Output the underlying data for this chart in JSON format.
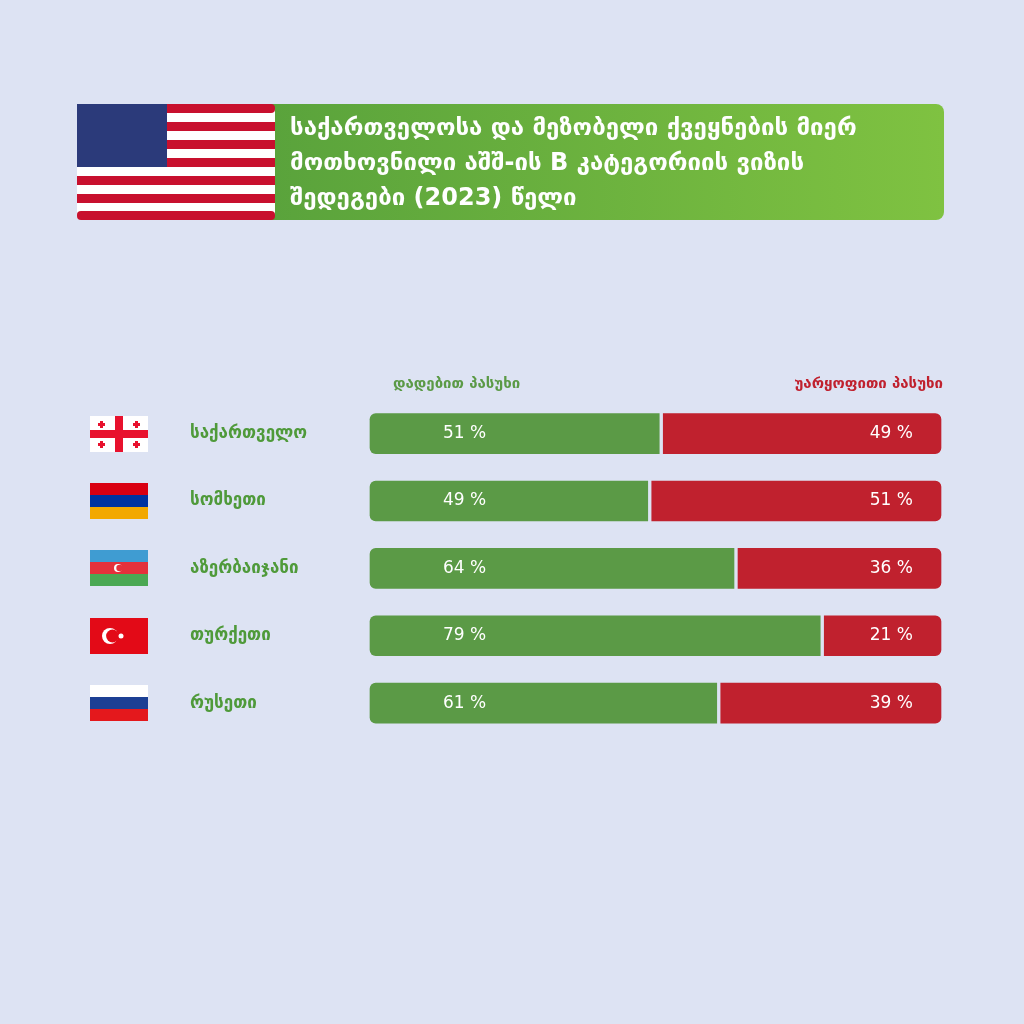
{
  "chart_data": {
    "type": "bar",
    "orientation": "horizontal",
    "stacked": true,
    "title": "საქართველოსა და მეზობელი ქვეყნების მიერ მოთხოვნილი აშშ-ის B კატეგორიის ვიზის შედეგები (2023) წელი",
    "categories": [
      "საქართველო",
      "სომხეთი",
      "აზერბაიჯანი",
      "თურქეთი",
      "რუსეთი"
    ],
    "series": [
      {
        "name": "დადებით პასუხი",
        "color": "#5b9a46",
        "values": [
          51,
          49,
          64,
          79,
          61
        ],
        "value_labels": [
          "51 %",
          "49 %",
          "64 %",
          "79 %",
          "61 %"
        ]
      },
      {
        "name": "უარყოფითი პასუხი",
        "color": "#c0212e",
        "values": [
          49,
          51,
          36,
          21,
          39
        ],
        "value_labels": [
          "49 %",
          "51 %",
          "36 %",
          "21 %",
          "39 %"
        ]
      }
    ],
    "xlim": [
      0,
      100
    ],
    "tick_labels": "y",
    "legend": "top"
  }
}
